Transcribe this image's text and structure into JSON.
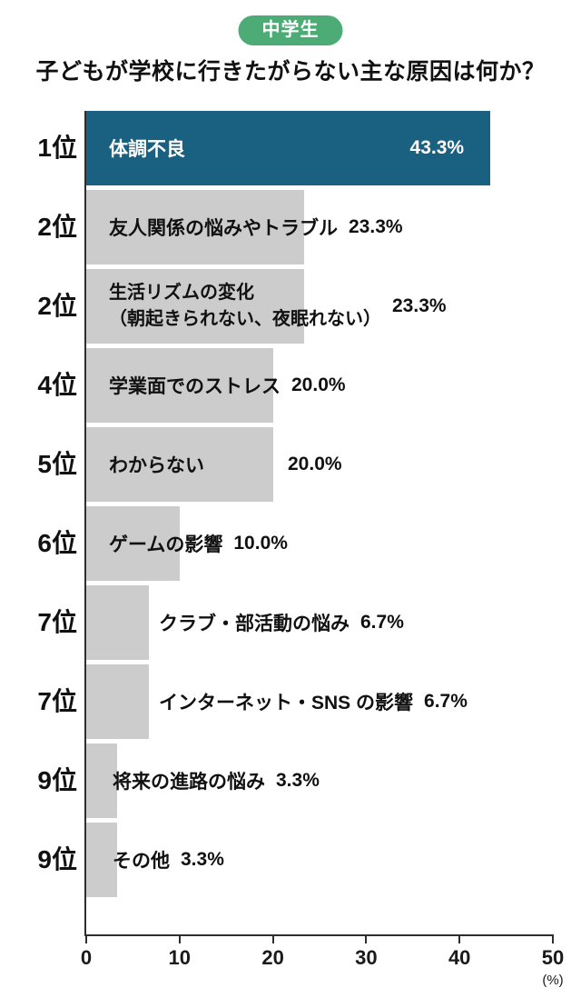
{
  "badge": {
    "label": "中学生",
    "color": "#4dac76"
  },
  "title": "子どもが学校に行きたがらない主な原因は何か？",
  "chart_data": {
    "type": "bar",
    "orientation": "horizontal",
    "title": "子どもが学校に行きたがらない主な原因は何か？",
    "group_label": "中学生",
    "xlabel": "(%)",
    "xlim": [
      0,
      50
    ],
    "x_ticks": [
      0,
      10,
      20,
      30,
      40,
      50
    ],
    "grid": false,
    "legend": "none",
    "colors": {
      "highlight_bar": "#1a6080",
      "default_bar": "#cccccc"
    },
    "rows": [
      {
        "rank": "1位",
        "label": "体調不良",
        "value": 43.3,
        "value_label": "43.3%",
        "highlight": true
      },
      {
        "rank": "2位",
        "label": "友人関係の悩みやトラブル",
        "value": 23.3,
        "value_label": "23.3%",
        "highlight": false
      },
      {
        "rank": "2位",
        "label": "生活リズムの変化",
        "label_line2": "（朝起きられない、夜眠れない）",
        "value": 23.3,
        "value_label": "23.3%",
        "highlight": false
      },
      {
        "rank": "4位",
        "label": "学業面でのストレス",
        "value": 20.0,
        "value_label": "20.0%",
        "highlight": false
      },
      {
        "rank": "5位",
        "label": "わからない",
        "value": 20.0,
        "value_label": "20.0%",
        "highlight": false
      },
      {
        "rank": "6位",
        "label": "ゲームの影響",
        "value": 10.0,
        "value_label": "10.0%",
        "highlight": false
      },
      {
        "rank": "7位",
        "label": "クラブ・部活動の悩み",
        "value": 6.7,
        "value_label": "6.7%",
        "highlight": false
      },
      {
        "rank": "7位",
        "label": "インターネット・SNS の影響",
        "value": 6.7,
        "value_label": "6.7%",
        "highlight": false
      },
      {
        "rank": "9位",
        "label": "将来の進路の悩み",
        "value": 3.3,
        "value_label": "3.3%",
        "highlight": false
      },
      {
        "rank": "9位",
        "label": "その他",
        "value": 3.3,
        "value_label": "3.3%",
        "highlight": false
      }
    ]
  }
}
